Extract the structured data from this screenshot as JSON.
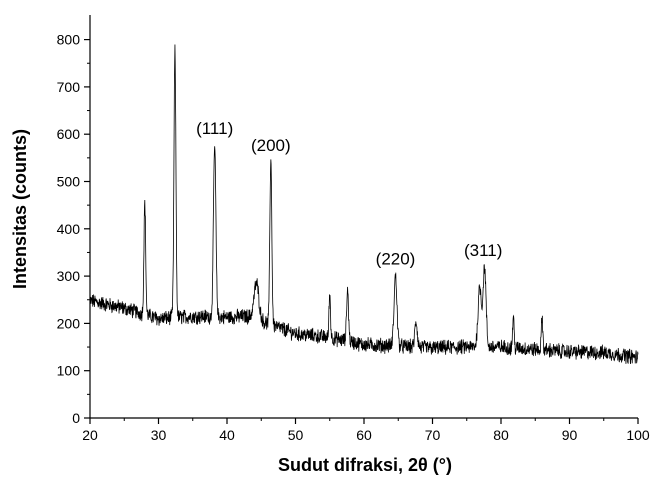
{
  "chart_data": {
    "type": "line",
    "title": "",
    "xlabel": "Sudut  difraksi, 2θ (°)",
    "ylabel": "Intensitas (counts)",
    "xlim": [
      20,
      100
    ],
    "ylim": [
      0,
      850
    ],
    "xticks": [
      "20",
      "30",
      "40",
      "50",
      "60",
      "70",
      "80",
      "90",
      "100"
    ],
    "yticks": [
      "0",
      "100",
      "200",
      "300",
      "400",
      "500",
      "600",
      "700",
      "800"
    ],
    "grid": false,
    "legend": "none",
    "line_color": "#000000",
    "baseline": [
      [
        20,
        248
      ],
      [
        25,
        232
      ],
      [
        30,
        210
      ],
      [
        35,
        215
      ],
      [
        40,
        213
      ],
      [
        43,
        215
      ],
      [
        46,
        200
      ],
      [
        50,
        178
      ],
      [
        55,
        170
      ],
      [
        60,
        155
      ],
      [
        65,
        152
      ],
      [
        70,
        148
      ],
      [
        75,
        150
      ],
      [
        80,
        150
      ],
      [
        85,
        145
      ],
      [
        90,
        140
      ],
      [
        95,
        138
      ],
      [
        100,
        128
      ]
    ],
    "peaks": [
      {
        "x": 28.0,
        "y": 455,
        "width": 0.18
      },
      {
        "x": 32.4,
        "y": 775,
        "width": 0.2
      },
      {
        "x": 38.2,
        "y": 575,
        "width": 0.25
      },
      {
        "x": 44.3,
        "y": 285,
        "width": 0.5
      },
      {
        "x": 46.4,
        "y": 550,
        "width": 0.2
      },
      {
        "x": 55.0,
        "y": 265,
        "width": 0.15
      },
      {
        "x": 57.6,
        "y": 272,
        "width": 0.2
      },
      {
        "x": 64.6,
        "y": 300,
        "width": 0.3
      },
      {
        "x": 67.6,
        "y": 205,
        "width": 0.25
      },
      {
        "x": 76.9,
        "y": 278,
        "width": 0.35
      },
      {
        "x": 77.6,
        "y": 318,
        "width": 0.3
      },
      {
        "x": 81.8,
        "y": 215,
        "width": 0.15
      },
      {
        "x": 86.0,
        "y": 213,
        "width": 0.15
      }
    ],
    "noise_amplitude": 14,
    "annotations": [
      {
        "text": "(111)",
        "x": 38.2,
        "y": 600
      },
      {
        "text": "(200)",
        "x": 46.4,
        "y": 565
      },
      {
        "text": "(220)",
        "x": 64.6,
        "y": 325
      },
      {
        "text": "(311)",
        "x": 77.4,
        "y": 342
      }
    ]
  }
}
